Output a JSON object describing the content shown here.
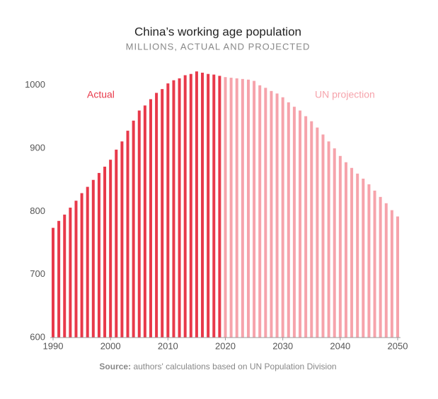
{
  "chart_data": {
    "type": "bar",
    "title": "China’s working age population",
    "subtitle": "MILLIONS, ACTUAL AND PROJECTED",
    "source_label": "Source:",
    "source": "authors' calculations based on UN Population Division",
    "x": [
      1990,
      1991,
      1992,
      1993,
      1994,
      1995,
      1996,
      1997,
      1998,
      1999,
      2000,
      2001,
      2002,
      2003,
      2004,
      2005,
      2006,
      2007,
      2008,
      2009,
      2010,
      2011,
      2012,
      2013,
      2014,
      2015,
      2016,
      2017,
      2018,
      2019,
      2020,
      2021,
      2022,
      2023,
      2024,
      2025,
      2026,
      2027,
      2028,
      2029,
      2030,
      2031,
      2032,
      2033,
      2034,
      2035,
      2036,
      2037,
      2038,
      2039,
      2040,
      2041,
      2042,
      2043,
      2044,
      2045,
      2046,
      2047,
      2048,
      2049,
      2050
    ],
    "series": [
      {
        "name": "Actual",
        "color": "#e8394a",
        "values": [
          774,
          785,
          795,
          806,
          817,
          829,
          839,
          850,
          861,
          871,
          882,
          898,
          911,
          928,
          944,
          960,
          968,
          978,
          988,
          994,
          1003,
          1008,
          1011,
          1016,
          1018,
          1022,
          1020,
          1018,
          1017,
          1015,
          null,
          null,
          null,
          null,
          null,
          null,
          null,
          null,
          null,
          null,
          null,
          null,
          null,
          null,
          null,
          null,
          null,
          null,
          null,
          null,
          null,
          null,
          null,
          null,
          null,
          null,
          null,
          null,
          null,
          null,
          null
        ]
      },
      {
        "name": "UN projection",
        "color": "#f6a3ab",
        "values": [
          null,
          null,
          null,
          null,
          null,
          null,
          null,
          null,
          null,
          null,
          null,
          null,
          null,
          null,
          null,
          null,
          null,
          null,
          null,
          null,
          null,
          null,
          null,
          null,
          null,
          null,
          null,
          null,
          null,
          null,
          1013,
          1012,
          1011,
          1010,
          1009,
          1007,
          1000,
          996,
          991,
          987,
          981,
          973,
          966,
          960,
          951,
          943,
          933,
          922,
          911,
          900,
          888,
          878,
          869,
          860,
          852,
          843,
          833,
          823,
          813,
          802,
          792
        ]
      }
    ],
    "xlim": [
      1990,
      2050
    ],
    "xticks": [
      1990,
      2000,
      2010,
      2020,
      2030,
      2040,
      2050
    ],
    "ylim": [
      600,
      1030
    ],
    "yticks": [
      600,
      700,
      800,
      900,
      1000
    ],
    "grid": false
  }
}
